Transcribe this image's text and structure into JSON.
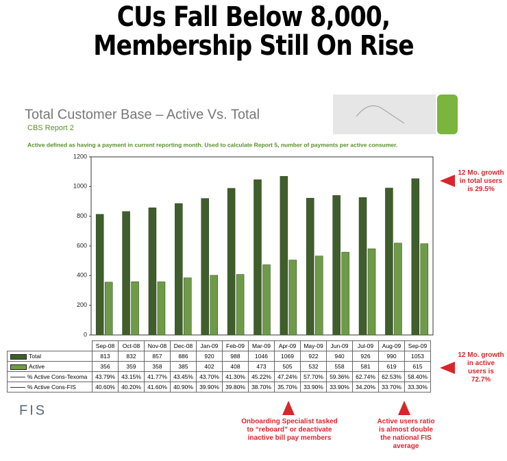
{
  "headline": [
    "CUs Fall Below 8,000,",
    "Membership Still On Rise"
  ],
  "chart_data": {
    "type": "bar",
    "title": "Total Customer Base – Active Vs. Total",
    "subtitle": "CBS Report 2",
    "note": "Active defined as having a payment in current reporting month. Used to calculate Report 5, number of payments per active consumer.",
    "categories": [
      "Sep-08",
      "Oct-08",
      "Nov-08",
      "Dec-08",
      "Jan-09",
      "Feb-09",
      "Mar-09",
      "Apr-09",
      "May-09",
      "Jun-09",
      "Jul-09",
      "Aug-09",
      "Sep-09"
    ],
    "series": [
      {
        "name": "Total",
        "color": "#3f5e2b",
        "values": [
          813,
          832,
          857,
          886,
          920,
          988,
          1046,
          1069,
          922,
          940,
          926,
          990,
          1053
        ]
      },
      {
        "name": "Active",
        "color": "#6f9b48",
        "values": [
          356,
          359,
          358,
          385,
          402,
          408,
          473,
          505,
          532,
          558,
          581,
          619,
          615
        ]
      }
    ],
    "table_rows": [
      {
        "name": "% Active Cons-Texoma",
        "values": [
          "43.79%",
          "43.15%",
          "41.77%",
          "43.45%",
          "43.70%",
          "41.30%",
          "45.22%",
          "47.24%",
          "57.70%",
          "59.36%",
          "62.74%",
          "62.53%",
          "58.40%"
        ]
      },
      {
        "name": "% Active Cons-FIS",
        "values": [
          "40.60%",
          "40.20%",
          "41.60%",
          "40.90%",
          "39.90%",
          "39.80%",
          "38.70%",
          "35.70%",
          "33.90%",
          "33.90%",
          "34.20%",
          "33.70%",
          "33.30%"
        ]
      }
    ],
    "ylim": [
      0,
      1200
    ],
    "yticks": [
      0,
      200,
      400,
      600,
      800,
      1000,
      1200
    ],
    "annotations": [
      "12 Mo. growth in total users is 29.5%",
      "12 Mo. growth in active users is 72.7%",
      "Onboarding Specialist tasked to “reboard” or deactivate inactive bill pay members",
      "Active users ratio is almost double the national FIS average"
    ]
  },
  "logo": "FIS"
}
